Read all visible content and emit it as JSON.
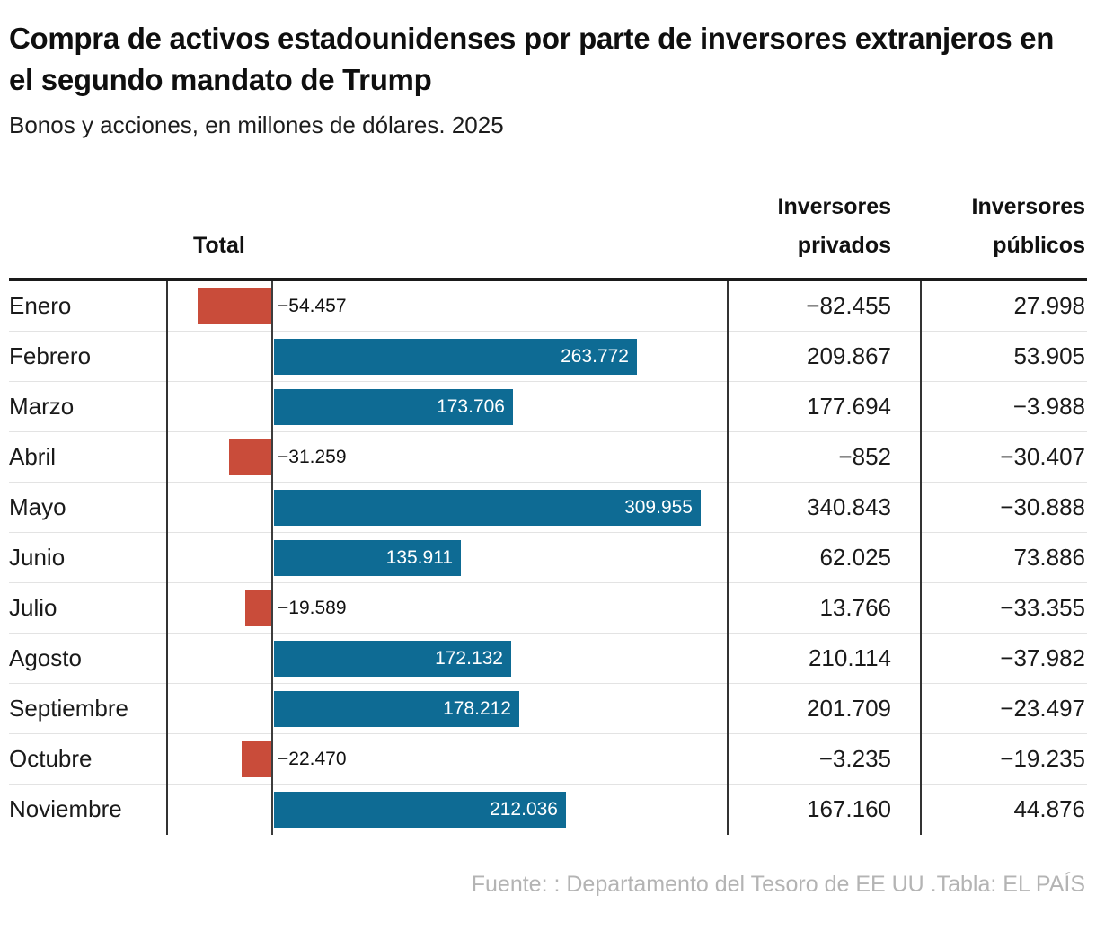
{
  "header": {
    "title": "Compra de activos estadounidenses por parte de inversores extranjeros en el segundo mandato de Trump",
    "subtitle": "Bonos y acciones, en millones de dólares. 2025"
  },
  "table": {
    "columns": {
      "total": "Total",
      "private": "Inversores privados",
      "public": "Inversores públicos"
    },
    "rows": [
      {
        "month": "Enero",
        "total_value": -54457,
        "total_label": "−54.457",
        "private": "−82.455",
        "public": "27.998"
      },
      {
        "month": "Febrero",
        "total_value": 263772,
        "total_label": "263.772",
        "private": "209.867",
        "public": "53.905"
      },
      {
        "month": "Marzo",
        "total_value": 173706,
        "total_label": "173.706",
        "private": "177.694",
        "public": "−3.988"
      },
      {
        "month": "Abril",
        "total_value": -31259,
        "total_label": "−31.259",
        "private": "−852",
        "public": "−30.407"
      },
      {
        "month": "Mayo",
        "total_value": 309955,
        "total_label": "309.955",
        "private": "340.843",
        "public": "−30.888"
      },
      {
        "month": "Junio",
        "total_value": 135911,
        "total_label": "135.911",
        "private": "62.025",
        "public": "73.886"
      },
      {
        "month": "Julio",
        "total_value": -19589,
        "total_label": "−19.589",
        "private": "13.766",
        "public": "−33.355"
      },
      {
        "month": "Agosto",
        "total_value": 172132,
        "total_label": "172.132",
        "private": "210.114",
        "public": "−37.982"
      },
      {
        "month": "Septiembre",
        "total_value": 178212,
        "total_label": "178.212",
        "private": "201.709",
        "public": "−23.497"
      },
      {
        "month": "Octubre",
        "total_value": -22470,
        "total_label": "−22.470",
        "private": "−3.235",
        "public": "−19.235"
      },
      {
        "month": "Noviembre",
        "total_value": 212036,
        "total_label": "212.036",
        "private": "167.160",
        "public": "44.876"
      }
    ]
  },
  "footer": {
    "source": "Fuente: : Departamento del Tesoro de EE UU .Tabla: EL PAÍS"
  },
  "colors": {
    "positive_bar": "#0e6b94",
    "negative_bar": "#c94c3a"
  },
  "chart_data": {
    "type": "bar",
    "orientation": "horizontal",
    "title": "Compra de activos estadounidenses por parte de inversores extranjeros en el segundo mandato de Trump",
    "subtitle": "Bonos y acciones, en millones de dólares. 2025",
    "units": "millones de dólares",
    "year": "2025",
    "categories": [
      "Enero",
      "Febrero",
      "Marzo",
      "Abril",
      "Mayo",
      "Junio",
      "Julio",
      "Agosto",
      "Septiembre",
      "Octubre",
      "Noviembre"
    ],
    "series": [
      {
        "name": "Total",
        "values": [
          -54457,
          263772,
          173706,
          -31259,
          309955,
          135911,
          -19589,
          172132,
          178212,
          -22470,
          212036
        ]
      },
      {
        "name": "Inversores privados",
        "values": [
          -82455,
          209867,
          177694,
          -852,
          340843,
          62025,
          13766,
          210114,
          201709,
          -3235,
          167160
        ]
      },
      {
        "name": "Inversores públicos",
        "values": [
          27998,
          53905,
          -3988,
          -30407,
          -30888,
          73886,
          -33355,
          -37982,
          -23497,
          -19235,
          44876
        ]
      }
    ],
    "bar_series_shown": "Total",
    "xlim": [
      -76000,
      330000
    ],
    "grid": false,
    "legend_position": "none",
    "positive_color": "#0e6b94",
    "negative_color": "#c94c3a",
    "source": "Fuente: : Departamento del Tesoro de EE UU .Tabla: EL PAÍS"
  }
}
